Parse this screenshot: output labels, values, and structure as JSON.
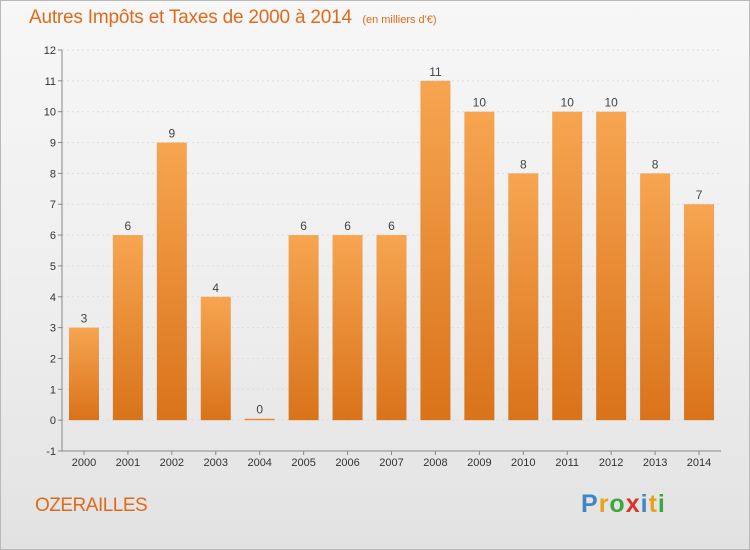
{
  "header": {
    "title": "Autres Impôts et Taxes de 2000 à 2014",
    "subtitle": "(en milliers d'€)"
  },
  "footer": {
    "place": "OZERAILLES",
    "brand": "Proxiti",
    "brand_letters": [
      {
        "ch": "P",
        "color": "#3f86c8"
      },
      {
        "ch": "r",
        "color": "#e8a21a"
      },
      {
        "ch": "o",
        "color": "#3fa83a"
      },
      {
        "ch": "x",
        "color": "#d8342a"
      },
      {
        "ch": "i",
        "color": "#3f86c8"
      },
      {
        "ch": "t",
        "color": "#e8a21a"
      },
      {
        "ch": "i",
        "color": "#3fa83a"
      }
    ]
  },
  "colors": {
    "bar_top": "#f7a551",
    "bar_bottom": "#d9731a",
    "accent": "#e06a1a"
  },
  "chart_data": {
    "type": "bar",
    "title": "Autres Impôts et Taxes de 2000 à 2014",
    "subtitle": "(en milliers d'€)",
    "categories": [
      "2000",
      "2001",
      "2002",
      "2003",
      "2004",
      "2005",
      "2006",
      "2007",
      "2008",
      "2009",
      "2010",
      "2011",
      "2012",
      "2013",
      "2014"
    ],
    "values": [
      3,
      6,
      9,
      4,
      0,
      6,
      6,
      6,
      11,
      10,
      8,
      10,
      10,
      8,
      7
    ],
    "data_labels": [
      "3",
      "6",
      "9",
      "4",
      "0",
      "6",
      "6",
      "6",
      "11",
      "10",
      "8",
      "10",
      "10",
      "8",
      "7"
    ],
    "ylim": [
      -1,
      12
    ],
    "yticks": [
      -1,
      0,
      1,
      2,
      3,
      4,
      5,
      6,
      7,
      8,
      9,
      10,
      11,
      12
    ],
    "xlabel": "",
    "ylabel": "",
    "grid": true,
    "legend": "none"
  }
}
